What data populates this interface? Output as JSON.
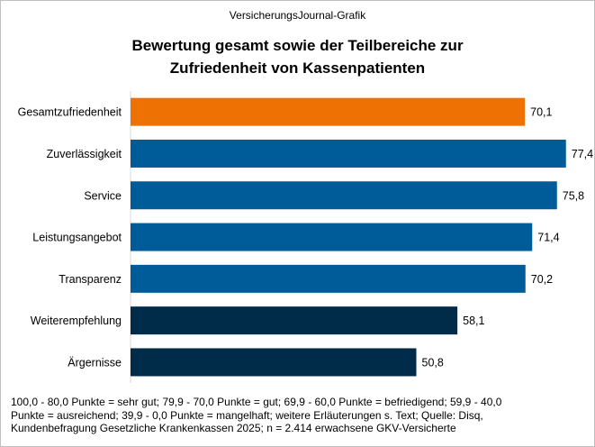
{
  "header": {
    "source": "VersicherungsJournal-Grafik",
    "title_lines": [
      "Bewertung gesamt sowie der Teilbereiche zur",
      "Zufriedenheit von Kassenpatienten"
    ]
  },
  "chart_data": {
    "type": "bar",
    "orientation": "horizontal",
    "title": "Bewertung gesamt sowie der Teilbereiche zur Zufriedenheit von Kassenpatienten",
    "categories": [
      "Gesamtzufriedenheit",
      "Zuverlässigkeit",
      "Service",
      "Leistungsangebot",
      "Transparenz",
      "Weiterempfehlung",
      "Ärgernisse"
    ],
    "values": [
      70.1,
      77.4,
      75.8,
      71.4,
      70.2,
      58.1,
      50.8
    ],
    "value_labels": [
      "70,1",
      "77,4",
      "75,8",
      "71,4",
      "70,2",
      "58,1",
      "50,8"
    ],
    "colors": [
      "#ee7203",
      "#005c99",
      "#005c99",
      "#005c99",
      "#005c99",
      "#002b49",
      "#002b49"
    ],
    "xlim": [
      0,
      80
    ],
    "grid": false,
    "xlabel": "",
    "ylabel": ""
  },
  "footnote": {
    "lines": [
      "100,0 - 80,0 Punkte = sehr gut; 79,9 - 70,0 Punkte = gut; 69,9 - 60,0 Punkte = befriedigend;  59,9 - 40,0",
      "Punkte = ausreichend;  39,9 - 0,0 Punkte = mangelhaft;  weitere  Erläuterungen  s. Text; Quelle: Disq,",
      "Kundenbefragung  Gesetzliche Krankenkassen  2025;  n = 2.414  erwachsene  GKV-Versicherte"
    ]
  }
}
